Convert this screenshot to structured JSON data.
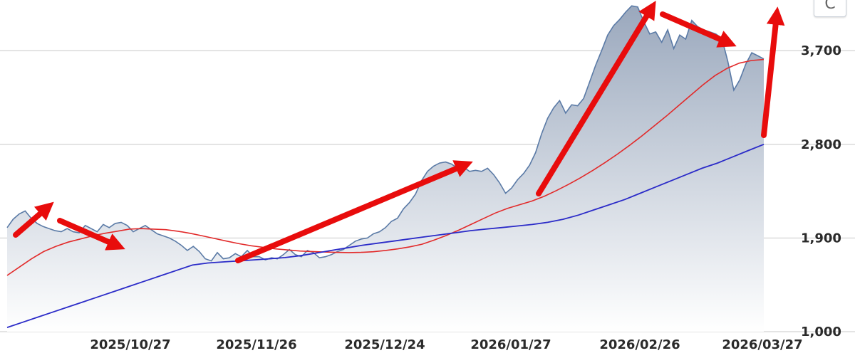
{
  "colors": {
    "price": "#5a7aa6",
    "price_fill_top": "#9aa8bd",
    "price_fill_bottom": "#ffffff",
    "ma_short": "#e22a2a",
    "ma_long": "#2b2bc8",
    "arrow": "#e80c0c",
    "grid": "#c8c8c8"
  },
  "toolbar": {
    "reset_icon": "refresh-icon",
    "reset_glyph": "C"
  },
  "chart_data": {
    "type": "line",
    "title": "",
    "xlabel": "",
    "ylabel": "",
    "grid": true,
    "y_axis_position": "right",
    "ylim": [
      1000,
      4200
    ],
    "y_ticks": [
      1000,
      1900,
      2800,
      3700
    ],
    "y_tick_labels": [
      "1,000",
      "1,900",
      "2,800",
      "3,700"
    ],
    "x_tick_labels": [
      "2025/10/27",
      "2025/11/26",
      "2025/12/24",
      "2026/01/27",
      "2026/02/26",
      "2026/03/27"
    ],
    "series": [
      {
        "key": "price",
        "style": "area",
        "values": [
          2000,
          2080,
          2130,
          2160,
          2090,
          2040,
          2010,
          1990,
          1970,
          1960,
          1990,
          1960,
          1950,
          2020,
          1990,
          1960,
          2030,
          2000,
          2040,
          2050,
          2020,
          1960,
          1990,
          2020,
          1980,
          1940,
          1920,
          1900,
          1870,
          1830,
          1780,
          1820,
          1770,
          1700,
          1680,
          1760,
          1700,
          1710,
          1750,
          1720,
          1780,
          1720,
          1720,
          1690,
          1710,
          1700,
          1740,
          1790,
          1740,
          1720,
          1780,
          1760,
          1710,
          1720,
          1740,
          1770,
          1790,
          1830,
          1870,
          1890,
          1900,
          1940,
          1960,
          2000,
          2060,
          2090,
          2180,
          2240,
          2320,
          2450,
          2540,
          2590,
          2620,
          2630,
          2610,
          2570,
          2580,
          2540,
          2550,
          2540,
          2570,
          2510,
          2430,
          2330,
          2380,
          2460,
          2520,
          2600,
          2720,
          2900,
          3050,
          3150,
          3220,
          3100,
          3180,
          3170,
          3240,
          3400,
          3560,
          3700,
          3850,
          3940,
          4000,
          4070,
          4130,
          4120,
          3980,
          3860,
          3880,
          3780,
          3900,
          3720,
          3850,
          3810,
          3990,
          3930,
          3900,
          3880,
          3860,
          3820,
          3600,
          3320,
          3420,
          3570,
          3680,
          3650,
          3620
        ]
      },
      {
        "key": "ma_short",
        "style": "line",
        "values": [
          1540,
          1620,
          1700,
          1770,
          1820,
          1860,
          1890,
          1920,
          1945,
          1965,
          1985,
          1990,
          1985,
          1980,
          1965,
          1945,
          1920,
          1895,
          1870,
          1845,
          1825,
          1810,
          1795,
          1785,
          1775,
          1770,
          1765,
          1762,
          1760,
          1762,
          1768,
          1780,
          1795,
          1815,
          1840,
          1880,
          1925,
          1975,
          2030,
          2085,
          2140,
          2185,
          2220,
          2255,
          2300,
          2355,
          2415,
          2480,
          2550,
          2625,
          2705,
          2790,
          2880,
          2975,
          3070,
          3170,
          3270,
          3370,
          3460,
          3530,
          3580,
          3605,
          3615
        ]
      },
      {
        "key": "ma_long",
        "style": "line",
        "values": [
          1040,
          1090,
          1140,
          1190,
          1240,
          1290,
          1340,
          1390,
          1440,
          1490,
          1540,
          1590,
          1640,
          1660,
          1670,
          1680,
          1690,
          1700,
          1712,
          1730,
          1755,
          1780,
          1805,
          1830,
          1850,
          1870,
          1890,
          1910,
          1930,
          1950,
          1970,
          1985,
          2000,
          2015,
          2030,
          2050,
          2080,
          2120,
          2170,
          2220,
          2270,
          2330,
          2390,
          2450,
          2510,
          2570,
          2620,
          2680,
          2740,
          2800
        ]
      }
    ]
  }
}
